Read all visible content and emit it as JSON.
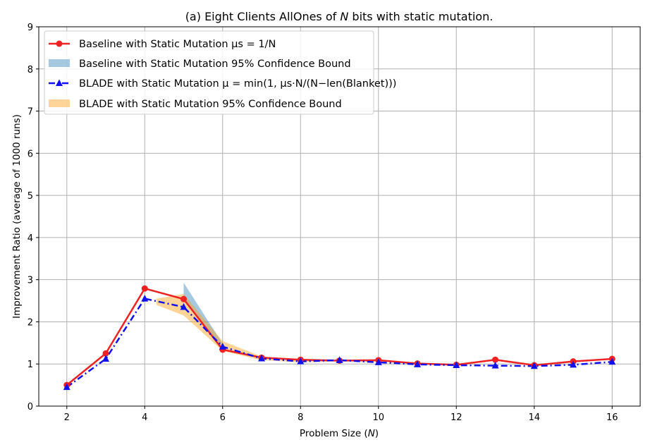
{
  "chart_data": {
    "type": "line",
    "title": "(a) Eight Clients AllOnes of N bits with static mutation.",
    "xlabel": "Problem Size (N)",
    "ylabel": "Improvement Ratio (average of 1000 runs)",
    "x": [
      2,
      3,
      4,
      5,
      6,
      7,
      8,
      9,
      10,
      11,
      12,
      13,
      14,
      15,
      16
    ],
    "xticks": [
      2,
      4,
      6,
      8,
      10,
      12,
      14,
      16
    ],
    "yticks": [
      0,
      1,
      2,
      3,
      4,
      5,
      6,
      7,
      8,
      9
    ],
    "xlim": [
      1.28,
      16.72
    ],
    "ylim": [
      0,
      9
    ],
    "grid": true,
    "legend_position": "top-left",
    "series": [
      {
        "name": "Baseline with Static Mutation μs = 1/N",
        "style": "line",
        "color": "#ee2222",
        "marker": "circle",
        "values": [
          0.5,
          1.25,
          2.79,
          2.54,
          1.34,
          1.15,
          1.1,
          1.08,
          1.09,
          1.01,
          0.98,
          1.1,
          0.97,
          1.06,
          1.12
        ]
      },
      {
        "name": "Baseline with Static Mutation 95% Confidence Bound",
        "style": "band",
        "color": "#1f77b4",
        "opacity": 0.4,
        "x": [
          5,
          6
        ],
        "lower": [
          2.5,
          1.32
        ],
        "upper": [
          2.93,
          1.48
        ]
      },
      {
        "name": "BLADE with Static Mutation μ = min(1, μs·N/(N−len(Blanket)))",
        "style": "dashdot",
        "color": "#1111ee",
        "marker": "triangle",
        "values": [
          0.45,
          1.12,
          2.55,
          2.35,
          1.41,
          1.13,
          1.06,
          1.09,
          1.04,
          0.99,
          0.97,
          0.96,
          0.95,
          0.98,
          1.05
        ]
      },
      {
        "name": "BLADE with Static Mutation 95% Confidence Bound",
        "style": "band",
        "color": "#ff9f1c",
        "opacity": 0.45,
        "x": [
          4.3,
          5,
          6,
          7,
          8,
          9,
          10
        ],
        "lower": [
          2.4,
          2.15,
          1.31,
          1.09,
          1.04,
          1.06,
          1.05
        ],
        "upper": [
          2.55,
          2.66,
          1.54,
          1.18,
          1.1,
          1.11,
          1.07
        ]
      }
    ]
  }
}
